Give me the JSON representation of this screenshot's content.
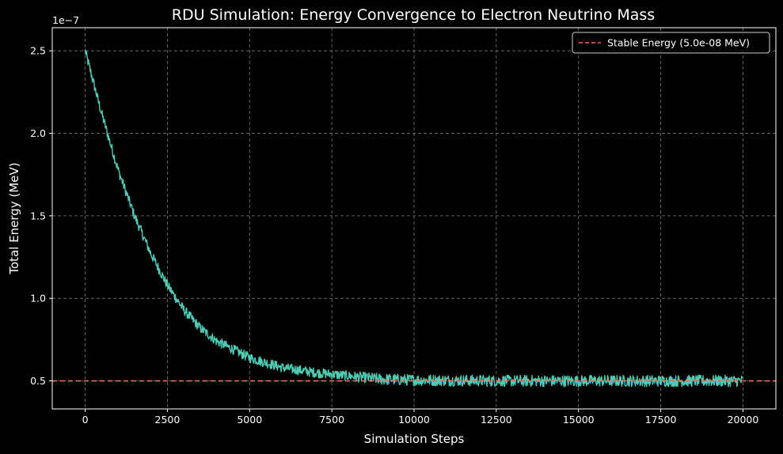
{
  "chart_data": {
    "type": "line",
    "title": "RDU Simulation: Energy Convergence to Electron Neutrino Mass",
    "xlabel": "Simulation Steps",
    "ylabel": "Total Energy (MeV)",
    "y_offset_label": "1e−7",
    "xlim": [
      -1000,
      21000
    ],
    "ylim": [
      0.33,
      2.64
    ],
    "y_scale_factor": 1e-07,
    "grid": true,
    "legend_position": "top-right",
    "x_ticks": [
      0,
      2500,
      5000,
      7500,
      10000,
      12500,
      15000,
      17500,
      20000
    ],
    "x_tick_labels": [
      "0",
      "2500",
      "5000",
      "7500",
      "10000",
      "12500",
      "15000",
      "17500",
      "20000"
    ],
    "y_ticks": [
      0.5,
      1.0,
      1.5,
      2.0,
      2.5
    ],
    "y_tick_labels": [
      "0.5",
      "1.0",
      "1.5",
      "2.0",
      "2.5"
    ],
    "series": [
      {
        "color": "#4ecdb4",
        "x": [
          0,
          500,
          1000,
          1500,
          2000,
          2500,
          3000,
          3500,
          4000,
          5000,
          6000,
          7000,
          8000,
          9000,
          10000,
          12500,
          15000,
          17500,
          20000
        ],
        "y": [
          2.5,
          2.12,
          1.78,
          1.5,
          1.27,
          1.08,
          0.93,
          0.82,
          0.74,
          0.64,
          0.58,
          0.55,
          0.53,
          0.51,
          0.505,
          0.5,
          0.5,
          0.5,
          0.5
        ],
        "band_halfwidth": [
          0.03,
          0.03,
          0.03,
          0.03,
          0.03,
          0.03,
          0.03,
          0.03,
          0.03,
          0.03,
          0.03,
          0.03,
          0.03,
          0.035,
          0.035,
          0.035,
          0.035,
          0.035,
          0.035
        ]
      }
    ],
    "reference_line": {
      "name": "Stable Energy (5.0e-08 MeV)",
      "y": 0.5,
      "color": "#e8705a",
      "style": "dashed"
    }
  }
}
